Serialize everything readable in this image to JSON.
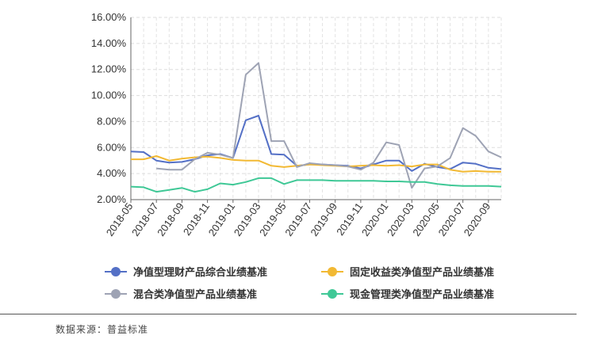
{
  "chart_data": {
    "type": "line",
    "title": "",
    "xlabel": "",
    "ylabel": "",
    "ylim": [
      2,
      16
    ],
    "y_ticks": [
      "2.00%",
      "4.00%",
      "6.00%",
      "8.00%",
      "10.00%",
      "12.00%",
      "14.00%",
      "16.00%"
    ],
    "x_tick_labels": [
      "2018-05",
      "2018-07",
      "2018-09",
      "2018-11",
      "2019-01",
      "2019-03",
      "2019-05",
      "2019-07",
      "2019-09",
      "2019-11",
      "2020-01",
      "2020-03",
      "2020-05",
      "2020-07",
      "2020-09"
    ],
    "categories": [
      "2018-05",
      "2018-06",
      "2018-07",
      "2018-08",
      "2018-09",
      "2018-10",
      "2018-11",
      "2018-12",
      "2019-01",
      "2019-02",
      "2019-03",
      "2019-04",
      "2019-05",
      "2019-06",
      "2019-07",
      "2019-08",
      "2019-09",
      "2019-10",
      "2019-11",
      "2019-12",
      "2020-01",
      "2020-02",
      "2020-03",
      "2020-04",
      "2020-05",
      "2020-06",
      "2020-07",
      "2020-08",
      "2020-09",
      "2020-10"
    ],
    "grid": true,
    "legend_position": "bottom",
    "series": [
      {
        "name": "净值型理财产品综合业绩基准",
        "color": "#5470c6",
        "values": [
          5.7,
          5.65,
          5.0,
          4.85,
          4.9,
          5.1,
          5.4,
          5.5,
          5.2,
          8.1,
          8.45,
          5.5,
          5.45,
          4.6,
          4.7,
          4.7,
          4.65,
          4.6,
          4.4,
          4.7,
          5.0,
          5.0,
          4.2,
          4.75,
          4.5,
          4.35,
          4.85,
          4.75,
          4.45,
          4.35
        ]
      },
      {
        "name": "固定收益类净值型产品业绩基准",
        "color": "#f2b933",
        "values": [
          5.1,
          5.1,
          5.35,
          5.0,
          5.15,
          5.25,
          5.3,
          5.2,
          5.05,
          5.0,
          5.0,
          4.6,
          4.5,
          4.6,
          4.7,
          4.65,
          4.6,
          4.55,
          4.6,
          4.65,
          4.6,
          4.65,
          4.55,
          4.7,
          4.7,
          4.3,
          4.15,
          4.2,
          4.15,
          4.15
        ]
      },
      {
        "name": "混合类净值型产品业绩基准",
        "color": "#9ea3b4",
        "values": [
          null,
          null,
          4.4,
          4.3,
          4.3,
          5.1,
          5.6,
          5.45,
          5.2,
          11.6,
          12.5,
          6.5,
          6.5,
          4.5,
          4.8,
          4.7,
          4.65,
          4.55,
          4.3,
          4.85,
          6.4,
          6.2,
          2.9,
          4.4,
          4.55,
          5.2,
          7.5,
          6.9,
          5.7,
          5.25
        ]
      },
      {
        "name": "现金管理类净值型产品业绩基准",
        "color": "#3fc896",
        "values": [
          3.0,
          2.95,
          2.6,
          2.75,
          2.9,
          2.6,
          2.8,
          3.25,
          3.15,
          3.35,
          3.65,
          3.65,
          3.2,
          3.5,
          3.5,
          3.5,
          3.45,
          3.45,
          3.45,
          3.45,
          3.4,
          3.4,
          3.35,
          3.35,
          3.2,
          3.1,
          3.05,
          3.05,
          3.05,
          3.0
        ]
      }
    ]
  },
  "source": "数据来源：普益标准"
}
